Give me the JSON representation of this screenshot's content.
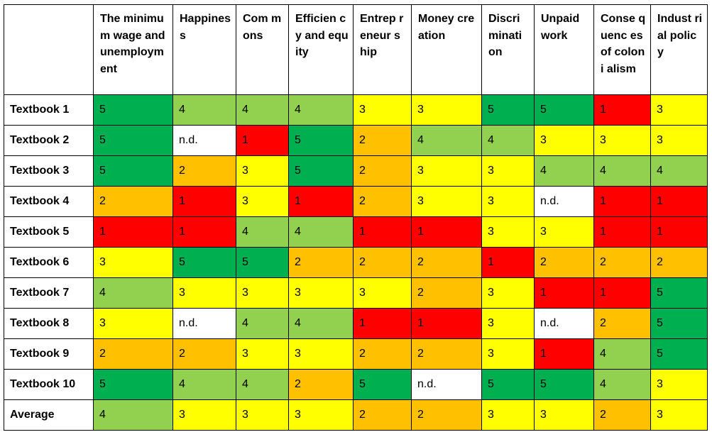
{
  "chart_data": {
    "type": "table",
    "columns": [
      "The minimum wage and unemployment",
      "Happiness",
      "Commons",
      "Efficiency and equity",
      "Entrepreneurship",
      "Money creation",
      "Discrimination",
      "Unpaid work",
      "Consequences of colonialism",
      "Industrial policy"
    ],
    "column_headers_display": [
      "The minimum wage and unemployment",
      "Happiness",
      "Com mons",
      "Efficien cy and equity",
      "Entrep reneur ship",
      "Money creation",
      "Discri minati on",
      "Unpaid work",
      "Conse quenc es of coloni alism",
      "Indust rial policy"
    ],
    "rows": [
      {
        "label": "Textbook 1",
        "values": [
          "5",
          "4",
          "4",
          "4",
          "3",
          "3",
          "5",
          "5",
          "1",
          "3"
        ]
      },
      {
        "label": "Textbook 2",
        "values": [
          "5",
          "n.d.",
          "1",
          "5",
          "2",
          "4",
          "4",
          "3",
          "3",
          "3"
        ]
      },
      {
        "label": "Textbook 3",
        "values": [
          "5",
          "2",
          "3",
          "5",
          "2",
          "3",
          "3",
          "4",
          "4",
          "4"
        ]
      },
      {
        "label": "Textbook 4",
        "values": [
          "2",
          "1",
          "3",
          "1",
          "2",
          "3",
          "3",
          "n.d.",
          "1",
          "1"
        ]
      },
      {
        "label": "Textbook 5",
        "values": [
          "1",
          "1",
          "4",
          "4",
          "1",
          "1",
          "3",
          "3",
          "1",
          "1"
        ]
      },
      {
        "label": "Textbook 6",
        "values": [
          "3",
          "5",
          "5",
          "2",
          "2",
          "2",
          "1",
          "2",
          "2",
          "2"
        ]
      },
      {
        "label": "Textbook 7",
        "values": [
          "4",
          "3",
          "3",
          "3",
          "3",
          "2",
          "3",
          "1",
          "1",
          "5"
        ]
      },
      {
        "label": "Textbook 8",
        "values": [
          "3",
          "n.d.",
          "4",
          "4",
          "1",
          "1",
          "3",
          "n.d.",
          "2",
          "5"
        ]
      },
      {
        "label": "Textbook 9",
        "values": [
          "2",
          "2",
          "3",
          "3",
          "2",
          "2",
          "3",
          "1",
          "4",
          "5"
        ]
      },
      {
        "label": "Textbook 10",
        "values": [
          "5",
          "4",
          "4",
          "2",
          "5",
          "n.d.",
          "5",
          "5",
          "4",
          "3"
        ]
      },
      {
        "label": "Average",
        "values": [
          "4",
          "3",
          "3",
          "3",
          "2",
          "2",
          "3",
          "3",
          "2",
          "3"
        ]
      }
    ],
    "color_scale": {
      "1": "#ff0000",
      "2": "#ffc000",
      "3": "#ffff00",
      "4": "#92d050",
      "5": "#00b050",
      "n.d.": "#ffffff"
    }
  }
}
